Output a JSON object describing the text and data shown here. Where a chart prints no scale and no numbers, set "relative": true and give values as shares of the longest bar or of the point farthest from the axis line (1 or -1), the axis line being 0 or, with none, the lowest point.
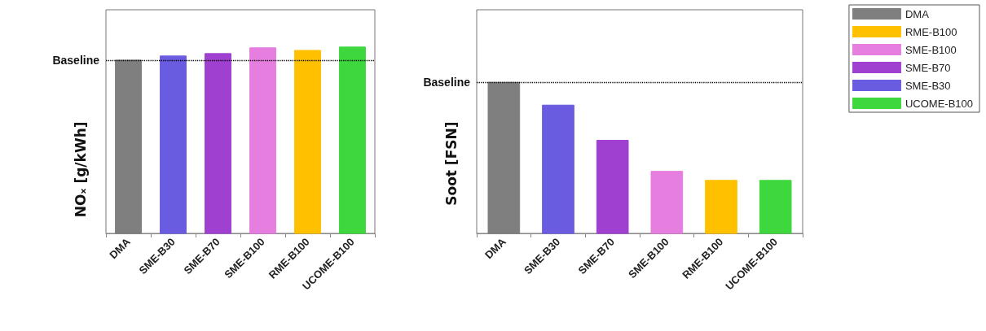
{
  "chart_data": [
    {
      "type": "bar",
      "relative": true,
      "stacked": true,
      "ylabel": "NOₓ [g/kWh]",
      "categories": [
        "DMA",
        "SME-B30",
        "SME-B70",
        "SME-B100",
        "RME-B100",
        "UCOME-B100"
      ],
      "series": [
        {
          "color": "#7f7f7f",
          "values": [
            0.93,
            null,
            null,
            null,
            null,
            null
          ]
        },
        {
          "color": "#ffc000",
          "values": [
            null,
            null,
            null,
            null,
            0.982,
            null
          ]
        },
        {
          "color": "#e67ee0",
          "values": [
            null,
            null,
            null,
            0.996,
            null,
            null
          ]
        },
        {
          "color": "#a040d0",
          "values": [
            null,
            null,
            0.965,
            null,
            null,
            null
          ]
        },
        {
          "color": "#6a5ce0",
          "values": [
            null,
            0.952,
            null,
            null,
            null,
            null
          ]
        },
        {
          "color": "#3ed83e",
          "values": [
            null,
            null,
            null,
            null,
            null,
            1
          ]
        }
      ],
      "ref_lines": [
        {
          "axis": "y",
          "value": 0.93,
          "label": "Baseline",
          "line_style": "dotted"
        }
      ],
      "legend": false
    },
    {
      "type": "bar",
      "relative": true,
      "stacked": true,
      "ylabel": "Soot [FSN]",
      "categories": [
        "DMA",
        "SME-B30",
        "SME-B70",
        "SME-B100",
        "RME-B100",
        "UCOME-B100"
      ],
      "series": [
        {
          "name": "DMA",
          "color": "#7f7f7f",
          "values": [
            1,
            null,
            null,
            null,
            null,
            null
          ]
        },
        {
          "name": "RME-B100",
          "color": "#ffc000",
          "values": [
            null,
            null,
            null,
            null,
            0.351,
            null
          ]
        },
        {
          "name": "SME-B100",
          "color": "#e67ee0",
          "values": [
            null,
            null,
            null,
            0.411,
            null,
            null
          ]
        },
        {
          "name": "SME-B70",
          "color": "#a040d0",
          "values": [
            null,
            null,
            0.616,
            null,
            null,
            null
          ]
        },
        {
          "name": "SME-B30",
          "color": "#6a5ce0",
          "values": [
            null,
            0.849,
            null,
            null,
            null,
            null
          ]
        },
        {
          "name": "UCOME-B100",
          "color": "#3ed83e",
          "values": [
            null,
            null,
            null,
            null,
            null,
            0.351
          ]
        }
      ],
      "ref_lines": [
        {
          "axis": "y",
          "value": 1,
          "label": "Baseline",
          "line_style": "dotted"
        }
      ],
      "legend": "right"
    }
  ]
}
